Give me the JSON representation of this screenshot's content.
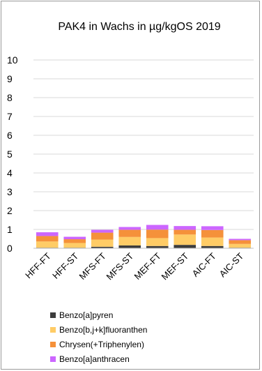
{
  "chart_data": {
    "type": "bar",
    "stacked": true,
    "title": "PAK4 in Wachs in µg/kgOS 2019",
    "xlabel": "",
    "ylabel": "",
    "ylim": [
      0,
      10
    ],
    "yticks": [
      0,
      1,
      2,
      3,
      4,
      5,
      6,
      7,
      8,
      9,
      10
    ],
    "grid": true,
    "legend_position": "bottom",
    "categories": [
      "HFF-FT",
      "HFF-ST",
      "MFS-FT",
      "MFS-ST",
      "MEF-FT",
      "MEF-ST",
      "AIC-FT",
      "AIC-ST"
    ],
    "series": [
      {
        "name": "Benzo[a]pyren",
        "color": "#3c3c3c",
        "values": [
          0.03,
          0.03,
          0.08,
          0.15,
          0.12,
          0.18,
          0.12,
          0.03
        ]
      },
      {
        "name": "Benzo[b,j+k]fluoranthen",
        "color": "#ffcc66",
        "values": [
          0.33,
          0.25,
          0.38,
          0.45,
          0.42,
          0.55,
          0.45,
          0.2
        ]
      },
      {
        "name": "Chrysen(+Triphenylen)",
        "color": "#f5913a",
        "values": [
          0.29,
          0.2,
          0.37,
          0.38,
          0.45,
          0.25,
          0.4,
          0.2
        ]
      },
      {
        "name": "Benzo[a]anthracen",
        "color": "#cc66ff",
        "values": [
          0.2,
          0.13,
          0.15,
          0.15,
          0.25,
          0.2,
          0.2,
          0.07
        ]
      }
    ]
  }
}
